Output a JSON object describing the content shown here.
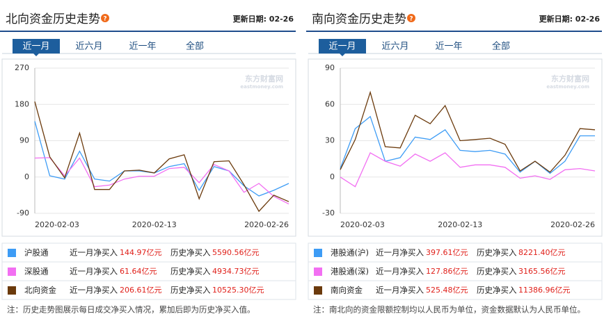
{
  "chart_data": [
    {
      "type": "line",
      "title": "北向资金历史走势",
      "update": "更新日期: 02-26",
      "tabs": [
        "近一月",
        "近六月",
        "近一年",
        "全部"
      ],
      "watermark": [
        "东方财富网",
        "eastmoney.com"
      ],
      "categories": [
        "2020-02-03",
        null,
        null,
        null,
        null,
        null,
        null,
        null,
        "2020-02-13",
        null,
        null,
        null,
        null,
        null,
        null,
        null,
        null,
        "2020-02-26"
      ],
      "ylim": [
        -90,
        270
      ],
      "yticks": [
        -90,
        0,
        90,
        180,
        270
      ],
      "grid": true,
      "month_label": "近一月净买入",
      "history_label": "历史净买入",
      "series": [
        {
          "name": "沪股通",
          "color": "#3d9cf5",
          "month_net": "144.97亿元",
          "history_net": "5590.56亿元",
          "values": [
            138,
            3,
            -5,
            64,
            -5,
            -10,
            15,
            15,
            10,
            26,
            33,
            -33,
            26,
            15,
            -22,
            -47,
            -33,
            -16
          ]
        },
        {
          "name": "深股通",
          "color": "#f26ff2",
          "month_net": "61.64亿元",
          "history_net": "4934.73亿元",
          "values": [
            47,
            48,
            3,
            47,
            -24,
            -20,
            -5,
            2,
            2,
            21,
            24,
            -14,
            31,
            15,
            -38,
            -16,
            -48,
            -67
          ]
        },
        {
          "name": "北向资金",
          "color": "#6b3a0c",
          "month_net": "206.61亿元",
          "history_net": "10525.30亿元",
          "values": [
            187,
            50,
            -2,
            109,
            -31,
            -31,
            15,
            17,
            10,
            45,
            55,
            -54,
            38,
            40,
            -19,
            -85,
            -45,
            -61
          ]
        }
      ],
      "note": "注：历史走势图展示每日成交净买入情况，累加后即为历史净买入值。"
    },
    {
      "type": "line",
      "title": "南向资金历史走势",
      "update": "更新日期: 02-26",
      "tabs": [
        "近一月",
        "近六月",
        "近一年",
        "全部"
      ],
      "watermark": [
        "东方财富网",
        "eastmoney.com"
      ],
      "categories": [
        "2020-02-03",
        null,
        null,
        null,
        null,
        null,
        null,
        null,
        "2020-02-13",
        null,
        null,
        null,
        null,
        null,
        null,
        null,
        null,
        "2020-02-26"
      ],
      "ylim": [
        -30,
        90
      ],
      "yticks": [
        -30,
        0,
        30,
        60,
        90
      ],
      "grid": true,
      "month_label": "近一月净买入",
      "history_label": "历史净买入",
      "series": [
        {
          "name": "港股通(沪)",
          "color": "#3d9cf5",
          "month_net": "397.61亿元",
          "history_net": "8221.40亿元",
          "values": [
            7,
            40,
            50,
            13,
            16,
            33,
            31,
            39,
            22,
            21,
            22,
            19,
            4,
            13,
            3,
            13,
            34,
            34
          ]
        },
        {
          "name": "港股通(深)",
          "color": "#f26ff2",
          "month_net": "127.86亿元",
          "history_net": "3165.56亿元",
          "values": [
            0,
            -8,
            20,
            13,
            9,
            19,
            13,
            20,
            8,
            10,
            10,
            8,
            -1,
            1,
            -2,
            6,
            7,
            5
          ]
        },
        {
          "name": "南向资金",
          "color": "#6b3a0c",
          "month_net": "525.48亿元",
          "history_net": "11386.96亿元",
          "values": [
            6,
            31,
            70,
            25,
            24,
            51,
            44,
            59,
            30,
            31,
            32,
            27,
            5,
            13,
            4,
            18,
            40,
            39
          ]
        }
      ],
      "note": "注：南北向的资金限额控制均以人民币为单位，资金数据默认为人民币单位。"
    }
  ]
}
